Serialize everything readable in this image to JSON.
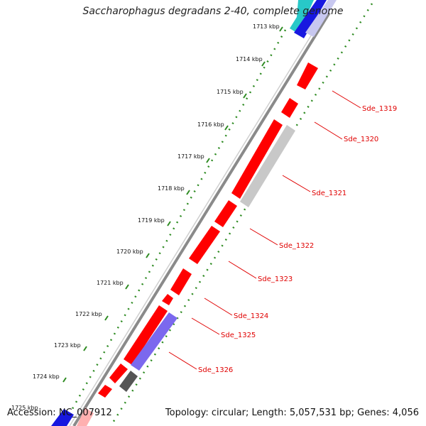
{
  "title": "Saccharophagus degradans 2-40, complete genome",
  "accession_text": "Accession: NC_007912",
  "topology_text": "Topology: circular; Length: 5,057,531 bp; Genes: 4,056",
  "colors": {
    "forward_gene": "#ff0000",
    "reverse_gene": "#ff0000",
    "pseudo_gene": "#c0c0c0",
    "highlight_gene": "#7b68ee",
    "dark_gene": "#555555",
    "backbone": "#888888",
    "tick_dots": "#2e8b22",
    "label": "#e00000"
  },
  "kbp_ticks": [
    "1713 kbp",
    "1714 kbp",
    "1715 kbp",
    "1716 kbp",
    "1717 kbp",
    "1718 kbp",
    "1719 kbp",
    "1720 kbp",
    "1721 kbp",
    "1722 kbp",
    "1723 kbp",
    "1724 kbp",
    "1725 kbp"
  ],
  "gene_labels": [
    "Sde_1319",
    "Sde_1320",
    "Sde_1321",
    "Sde_1322",
    "Sde_1323",
    "Sde_1324",
    "Sde_1325",
    "Sde_1326"
  ]
}
